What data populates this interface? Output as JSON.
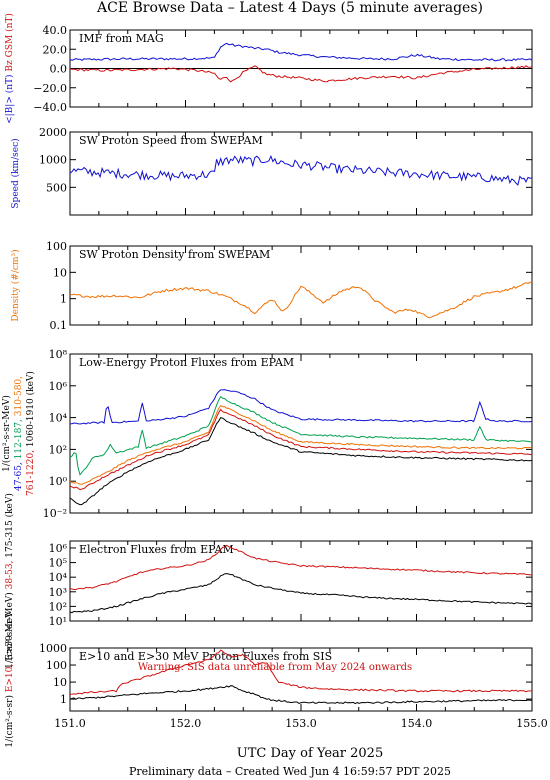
{
  "header": {
    "title": "ACE Browse Data – Latest 4 Days (5 minute averages)"
  },
  "footer": {
    "xlabel": "UTC Day of Year 2025",
    "note": "Preliminary data – Created Wed Jun  4 16:59:57 PDT 2025"
  },
  "colors": {
    "blue": "#1010d0",
    "red": "#d01010",
    "green": "#00a050",
    "orange": "#f07000",
    "black": "#000000"
  },
  "chart_data": [
    {
      "type": "line",
      "title": "IMF from MAG",
      "ylabel_parts": [
        "<|B|> (nT)",
        "Bz GSM (nT)"
      ],
      "xlim": [
        151.0,
        155.0
      ],
      "ylim": [
        -40,
        40
      ],
      "yscale": "linear",
      "yticks": [
        -40,
        -20,
        0,
        20,
        40
      ],
      "ytick_labels": [
        "−40.0",
        "−20.0",
        "0.0",
        "20.0",
        "40.0"
      ],
      "zero_line": true,
      "series": [
        {
          "name": "<|B|>",
          "color": "#1010d0",
          "x": [
            151.0,
            151.5,
            152.0,
            152.25,
            152.3,
            152.35,
            152.42,
            152.5,
            152.6,
            152.7,
            152.8,
            153.0,
            153.2,
            153.4,
            153.6,
            153.8,
            154.0,
            154.2,
            154.5,
            155.0
          ],
          "y": [
            9,
            10,
            10,
            11,
            22,
            26,
            24,
            23,
            21,
            20,
            17,
            14,
            12,
            11,
            10,
            10,
            14,
            10,
            9,
            9
          ]
        },
        {
          "name": "Bz GSM",
          "color": "#d01010",
          "x": [
            151.0,
            151.3,
            151.6,
            151.9,
            152.1,
            152.25,
            152.3,
            152.35,
            152.4,
            152.5,
            152.6,
            152.7,
            152.8,
            153.0,
            153.2,
            153.5,
            153.8,
            154.0,
            154.2,
            154.5,
            155.0
          ],
          "y": [
            -1,
            -2,
            -1,
            0,
            -2,
            -5,
            -12,
            -8,
            -14,
            -4,
            2,
            -6,
            -8,
            -10,
            -13,
            -10,
            -8,
            -10,
            -5,
            -1,
            2
          ]
        }
      ]
    },
    {
      "type": "line",
      "title": "SW Proton Speed from SWEPAM",
      "ylabel_parts": [
        "Speed (km/sec)"
      ],
      "xlim": [
        151.0,
        155.0
      ],
      "ylim": [
        250,
        2000
      ],
      "yscale": "log",
      "yticks": [
        500,
        1000,
        2000
      ],
      "ytick_labels": [
        "500",
        "1000",
        "2000"
      ],
      "series": [
        {
          "name": "Speed",
          "color": "#1010d0",
          "x": [
            151.0,
            151.3,
            151.6,
            151.9,
            152.1,
            152.25,
            152.27,
            152.4,
            152.6,
            152.7,
            152.9,
            153.1,
            153.3,
            153.5,
            153.8,
            154.0,
            154.3,
            154.6,
            154.8,
            155.0
          ],
          "y": [
            760,
            720,
            690,
            660,
            680,
            700,
            940,
            1000,
            960,
            1020,
            900,
            860,
            800,
            760,
            720,
            700,
            660,
            640,
            600,
            580
          ]
        }
      ]
    },
    {
      "type": "line",
      "title": "SW Proton Density from SWEPAM",
      "ylabel_parts": [
        "Density (#/cm³)"
      ],
      "xlim": [
        151.0,
        155.0
      ],
      "ylim": [
        0.1,
        100
      ],
      "yscale": "log",
      "yticks": [
        0.1,
        1,
        10,
        100
      ],
      "ytick_labels": [
        "0.1",
        "1",
        "10",
        "100"
      ],
      "series": [
        {
          "name": "Density",
          "color": "#f07000",
          "x": [
            151.0,
            151.2,
            151.4,
            151.6,
            151.8,
            152.0,
            152.2,
            152.35,
            152.5,
            152.6,
            152.75,
            152.85,
            153.0,
            153.2,
            153.35,
            153.5,
            153.65,
            153.8,
            153.95,
            154.1,
            154.3,
            154.5,
            154.7,
            154.9,
            155.0
          ],
          "y": [
            1.4,
            1.2,
            1.3,
            1.1,
            2.0,
            2.5,
            2.0,
            1.2,
            0.6,
            0.3,
            1.0,
            0.3,
            3.0,
            0.7,
            2.0,
            3.0,
            0.8,
            0.3,
            0.4,
            0.2,
            0.4,
            1.2,
            1.8,
            3.0,
            4.5
          ]
        }
      ]
    },
    {
      "type": "line",
      "title": "Low-Energy Proton Fluxes from EPAM",
      "ylabel_parts": [
        "1/(cm²-s-sr-MeV)",
        "47-65,",
        "112-187,",
        "310-580,",
        "761-1220,",
        "1060-1910 (keV)"
      ],
      "xlim": [
        151.0,
        155.0
      ],
      "ylim": [
        0.01,
        100000000
      ],
      "yscale": "log",
      "yticks": [
        0.01,
        1,
        100,
        10000,
        1000000,
        100000000
      ],
      "ytick_labels": [
        "10⁻²",
        "10⁰",
        "10²",
        "10⁴",
        "10⁶",
        "10⁸"
      ],
      "series": [
        {
          "name": "47-65",
          "color": "#1010d0",
          "x": [
            151.0,
            151.3,
            151.32,
            151.36,
            151.6,
            151.62,
            151.66,
            152.0,
            152.2,
            152.3,
            152.45,
            152.6,
            152.75,
            153.0,
            153.5,
            154.0,
            154.5,
            154.55,
            154.6,
            154.7,
            155.0
          ],
          "y": [
            4000,
            5000,
            100000,
            5000,
            6000,
            150000,
            6000,
            12000,
            40000,
            600000,
            400000,
            150000,
            30000,
            8000,
            7000,
            6000,
            6000,
            100000,
            8000,
            6000,
            6000
          ]
        },
        {
          "name": "112-187",
          "color": "#00a050",
          "x": [
            151.0,
            151.05,
            151.08,
            151.2,
            151.3,
            151.35,
            151.4,
            151.6,
            151.62,
            151.66,
            152.0,
            152.2,
            152.3,
            152.45,
            152.6,
            152.75,
            153.0,
            153.5,
            154.0,
            154.5,
            154.55,
            154.6,
            155.0
          ],
          "y": [
            30,
            80,
            2,
            30,
            50,
            200,
            60,
            150,
            3000,
            120,
            700,
            3000,
            200000,
            60000,
            20000,
            5000,
            900,
            600,
            500,
            400,
            3000,
            400,
            300
          ]
        },
        {
          "name": "310-580",
          "color": "#f07000",
          "x": [
            151.0,
            151.1,
            151.3,
            151.5,
            151.7,
            152.0,
            152.2,
            152.3,
            152.45,
            152.6,
            152.75,
            153.0,
            153.5,
            154.0,
            154.5,
            155.0
          ],
          "y": [
            1,
            0.6,
            3,
            20,
            80,
            300,
            1200,
            60000,
            20000,
            6000,
            1500,
            300,
            200,
            150,
            120,
            120
          ]
        },
        {
          "name": "761-1220",
          "color": "#d01010",
          "x": [
            151.0,
            151.1,
            151.3,
            151.5,
            151.7,
            152.0,
            152.2,
            152.3,
            152.45,
            152.6,
            152.75,
            153.0,
            153.5,
            154.0,
            154.5,
            155.0
          ],
          "y": [
            0.5,
            0.3,
            2,
            10,
            50,
            200,
            800,
            30000,
            10000,
            3000,
            800,
            150,
            100,
            70,
            60,
            50
          ]
        },
        {
          "name": "1060-1910",
          "color": "#000000",
          "x": [
            151.0,
            151.1,
            151.3,
            151.5,
            151.7,
            152.0,
            152.2,
            152.3,
            152.45,
            152.6,
            152.75,
            153.0,
            153.5,
            154.0,
            154.5,
            155.0
          ],
          "y": [
            0.08,
            0.03,
            0.5,
            4,
            20,
            100,
            400,
            10000,
            3000,
            1000,
            300,
            70,
            40,
            30,
            25,
            20
          ]
        }
      ]
    },
    {
      "type": "line",
      "title": "Electron Fluxes from EPAM",
      "ylabel_parts": [
        "1/(cm²-s-sr-MeV)",
        "38-53,",
        "175-315 (keV)"
      ],
      "xlim": [
        151.0,
        155.0
      ],
      "ylim": [
        10,
        3000000
      ],
      "yscale": "log",
      "yticks": [
        10,
        100,
        1000,
        10000,
        100000,
        1000000
      ],
      "ytick_labels": [
        "10¹",
        "10²",
        "10³",
        "10⁴",
        "10⁵",
        "10⁶"
      ],
      "series": [
        {
          "name": "38-53",
          "color": "#d01010",
          "x": [
            151.0,
            151.2,
            151.4,
            151.6,
            151.8,
            152.0,
            152.2,
            152.35,
            152.45,
            152.6,
            152.8,
            153.0,
            153.3,
            153.6,
            154.0,
            154.5,
            155.0
          ],
          "y": [
            1500,
            2000,
            5000,
            20000,
            40000,
            60000,
            150000,
            1500000,
            700000,
            200000,
            100000,
            60000,
            50000,
            40000,
            30000,
            20000,
            15000
          ]
        },
        {
          "name": "175-315",
          "color": "#000000",
          "x": [
            151.0,
            151.2,
            151.4,
            151.6,
            151.8,
            152.0,
            152.2,
            152.35,
            152.45,
            152.6,
            152.8,
            153.0,
            153.3,
            153.6,
            154.0,
            154.5,
            155.0
          ],
          "y": [
            40,
            50,
            100,
            300,
            800,
            1500,
            3000,
            20000,
            10000,
            3000,
            1500,
            800,
            600,
            400,
            300,
            200,
            150
          ]
        }
      ]
    },
    {
      "type": "line",
      "title": "E>10 and E>30 MeV Proton Fluxes from SIS",
      "ylabel_parts": [
        "1/(cm²-s-sr)",
        "E>10,",
        "E>30 MeV"
      ],
      "annotation": "Warning: SIS data unreliable from May 2024 onwards",
      "xlim": [
        151.0,
        155.0
      ],
      "ylim": [
        0.2,
        1000
      ],
      "yscale": "log",
      "yticks": [
        1,
        10,
        100,
        1000
      ],
      "ytick_labels": [
        "1",
        "10",
        "100",
        "1000"
      ],
      "series": [
        {
          "name": "E>10",
          "color": "#d01010",
          "x": [
            151.0,
            151.2,
            151.4,
            151.45,
            151.6,
            151.8,
            152.0,
            152.2,
            152.3,
            152.4,
            152.5,
            152.6,
            152.7,
            152.8,
            153.0,
            153.2,
            153.5,
            154.0,
            154.5,
            155.0
          ],
          "y": [
            2,
            2.5,
            3,
            8,
            15,
            40,
            100,
            200,
            700,
            300,
            400,
            100,
            150,
            10,
            5,
            4,
            3.5,
            3,
            3,
            3
          ]
        },
        {
          "name": "E>30",
          "color": "#000000",
          "x": [
            151.0,
            151.2,
            151.4,
            151.6,
            151.8,
            152.0,
            152.2,
            152.3,
            152.4,
            152.5,
            152.6,
            152.7,
            152.8,
            153.0,
            153.5,
            154.0,
            154.5,
            155.0
          ],
          "y": [
            1,
            1.2,
            1.5,
            2,
            2.5,
            3,
            4,
            5,
            6,
            3,
            2,
            1,
            0.8,
            0.6,
            0.6,
            0.7,
            0.8,
            0.9
          ]
        }
      ]
    }
  ],
  "xaxis": {
    "ticks": [
      151.0,
      152.0,
      153.0,
      154.0,
      155.0
    ],
    "tick_labels": [
      "151.0",
      "152.0",
      "153.0",
      "154.0",
      "155.0"
    ]
  }
}
